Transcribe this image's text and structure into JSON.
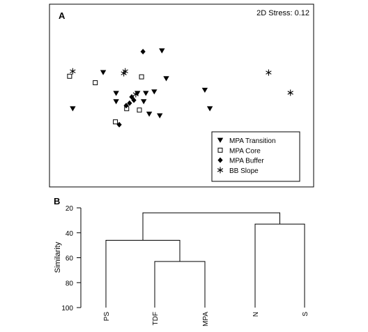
{
  "panel_a": {
    "label": "A",
    "stress": "2D Stress: 0.12",
    "legend": [
      {
        "name": "MPA Transition",
        "symbol": "triangle-down"
      },
      {
        "name": "MPA Core",
        "symbol": "square-open"
      },
      {
        "name": "MPA Buffer",
        "symbol": "diamond"
      },
      {
        "name": "BB Slope",
        "symbol": "asterisk"
      }
    ]
  },
  "panel_b": {
    "label": "B",
    "ylabel": "Similarity",
    "ytick_labels": [
      "20",
      "40",
      "60",
      "80",
      "100"
    ]
  },
  "chart_data": [
    {
      "type": "scatter",
      "title": "",
      "subtitle": "2D Stress: 0.12",
      "xlabel": "",
      "ylabel": "",
      "grid": false,
      "legend_position": "bottom-right",
      "xlim": [
        0,
        10
      ],
      "ylim": [
        0,
        10
      ],
      "series": [
        {
          "name": "MPA Transition",
          "symbol": "triangle-down",
          "points": [
            [
              4.05,
              8.71
            ],
            [
              1.6,
              6.87
            ],
            [
              4.23,
              6.35
            ],
            [
              3.73,
              5.23
            ],
            [
              5.84,
              5.37
            ],
            [
              3.03,
              5.1
            ],
            [
              3.38,
              5.1
            ],
            [
              2.14,
              5.1
            ],
            [
              2.14,
              4.4
            ],
            [
              3.29,
              4.4
            ],
            [
              0.33,
              3.8
            ],
            [
              6.05,
              3.8
            ],
            [
              3.52,
              3.34
            ],
            [
              3.96,
              3.2
            ]
          ]
        },
        {
          "name": "MPA Core",
          "symbol": "square-open",
          "points": [
            [
              0.2,
              6.55
            ],
            [
              1.27,
              6.0
            ],
            [
              3.2,
              6.5
            ],
            [
              2.58,
              3.8
            ],
            [
              2.11,
              2.68
            ],
            [
              3.11,
              3.68
            ]
          ]
        },
        {
          "name": "MPA Buffer",
          "symbol": "diamond",
          "points": [
            [
              3.26,
              8.64
            ],
            [
              2.79,
              4.79
            ],
            [
              2.56,
              4.06
            ],
            [
              2.7,
              4.27
            ],
            [
              2.88,
              4.52
            ],
            [
              2.27,
              2.44
            ]
          ]
        },
        {
          "name": "BB Slope",
          "symbol": "asterisk",
          "points": [
            [
              0.33,
              6.97
            ],
            [
              2.52,
              6.97
            ],
            [
              2.46,
              6.8
            ],
            [
              2.96,
              5.02
            ],
            [
              8.5,
              6.86
            ],
            [
              9.41,
              5.15
            ]
          ]
        }
      ]
    },
    {
      "type": "dendrogram",
      "title": "",
      "xlabel": "",
      "ylabel": "Similarity",
      "ylim": [
        20,
        100
      ],
      "yticks": [
        20,
        40,
        60,
        80,
        100
      ],
      "y_inverted": true,
      "grid": false,
      "leaves": [
        "PS",
        "TDF",
        "MPA",
        "N",
        "S"
      ],
      "merges": [
        {
          "left": "TDF",
          "right": "MPA",
          "similarity": 63
        },
        {
          "left": "PS",
          "right": "TDF+MPA",
          "similarity": 46
        },
        {
          "left": "N",
          "right": "S",
          "similarity": 33
        },
        {
          "left": "PS+TDF+MPA",
          "right": "N+S",
          "similarity": 24
        }
      ]
    }
  ]
}
